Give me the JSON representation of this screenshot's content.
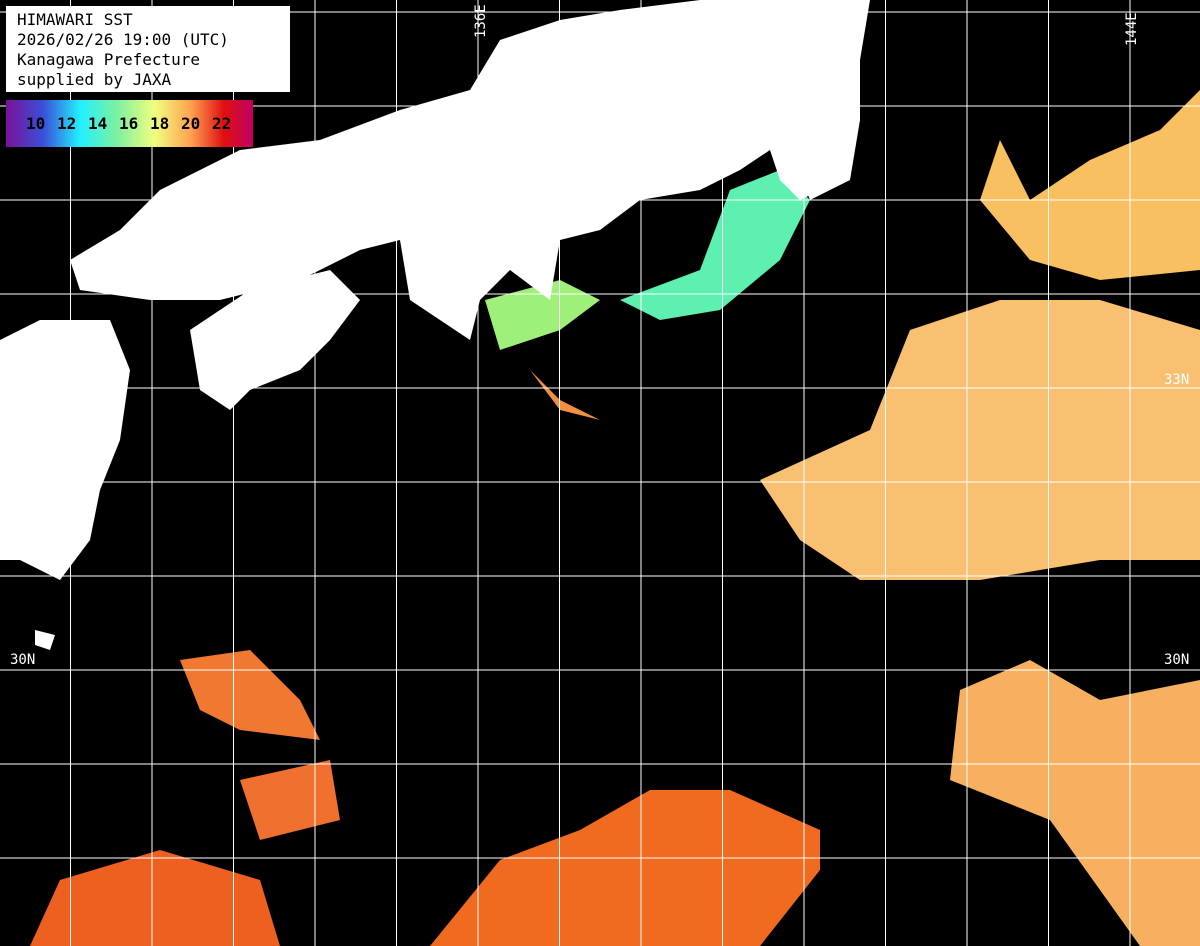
{
  "header": {
    "lines": [
      "HIMAWARI SST",
      "2026/02/26 19:00 (UTC)",
      "Kanagawa Prefecture",
      "supplied by JAXA"
    ]
  },
  "colorbar": {
    "labels": [
      "10",
      "12",
      "14",
      "16",
      "18",
      "20",
      "22"
    ],
    "colors": [
      "#7a119a",
      "#3a4fd8",
      "#22f0ff",
      "#7df0a0",
      "#f0ff80",
      "#ffa050",
      "#e01010",
      "#c00060"
    ]
  },
  "grid": {
    "lon_labels": [
      "136E",
      "144E"
    ],
    "lat_labels": [
      "33N",
      "30N"
    ]
  },
  "colors": {
    "land": "#ffffff",
    "no_data": "#000000",
    "grid": "#ffffff"
  }
}
